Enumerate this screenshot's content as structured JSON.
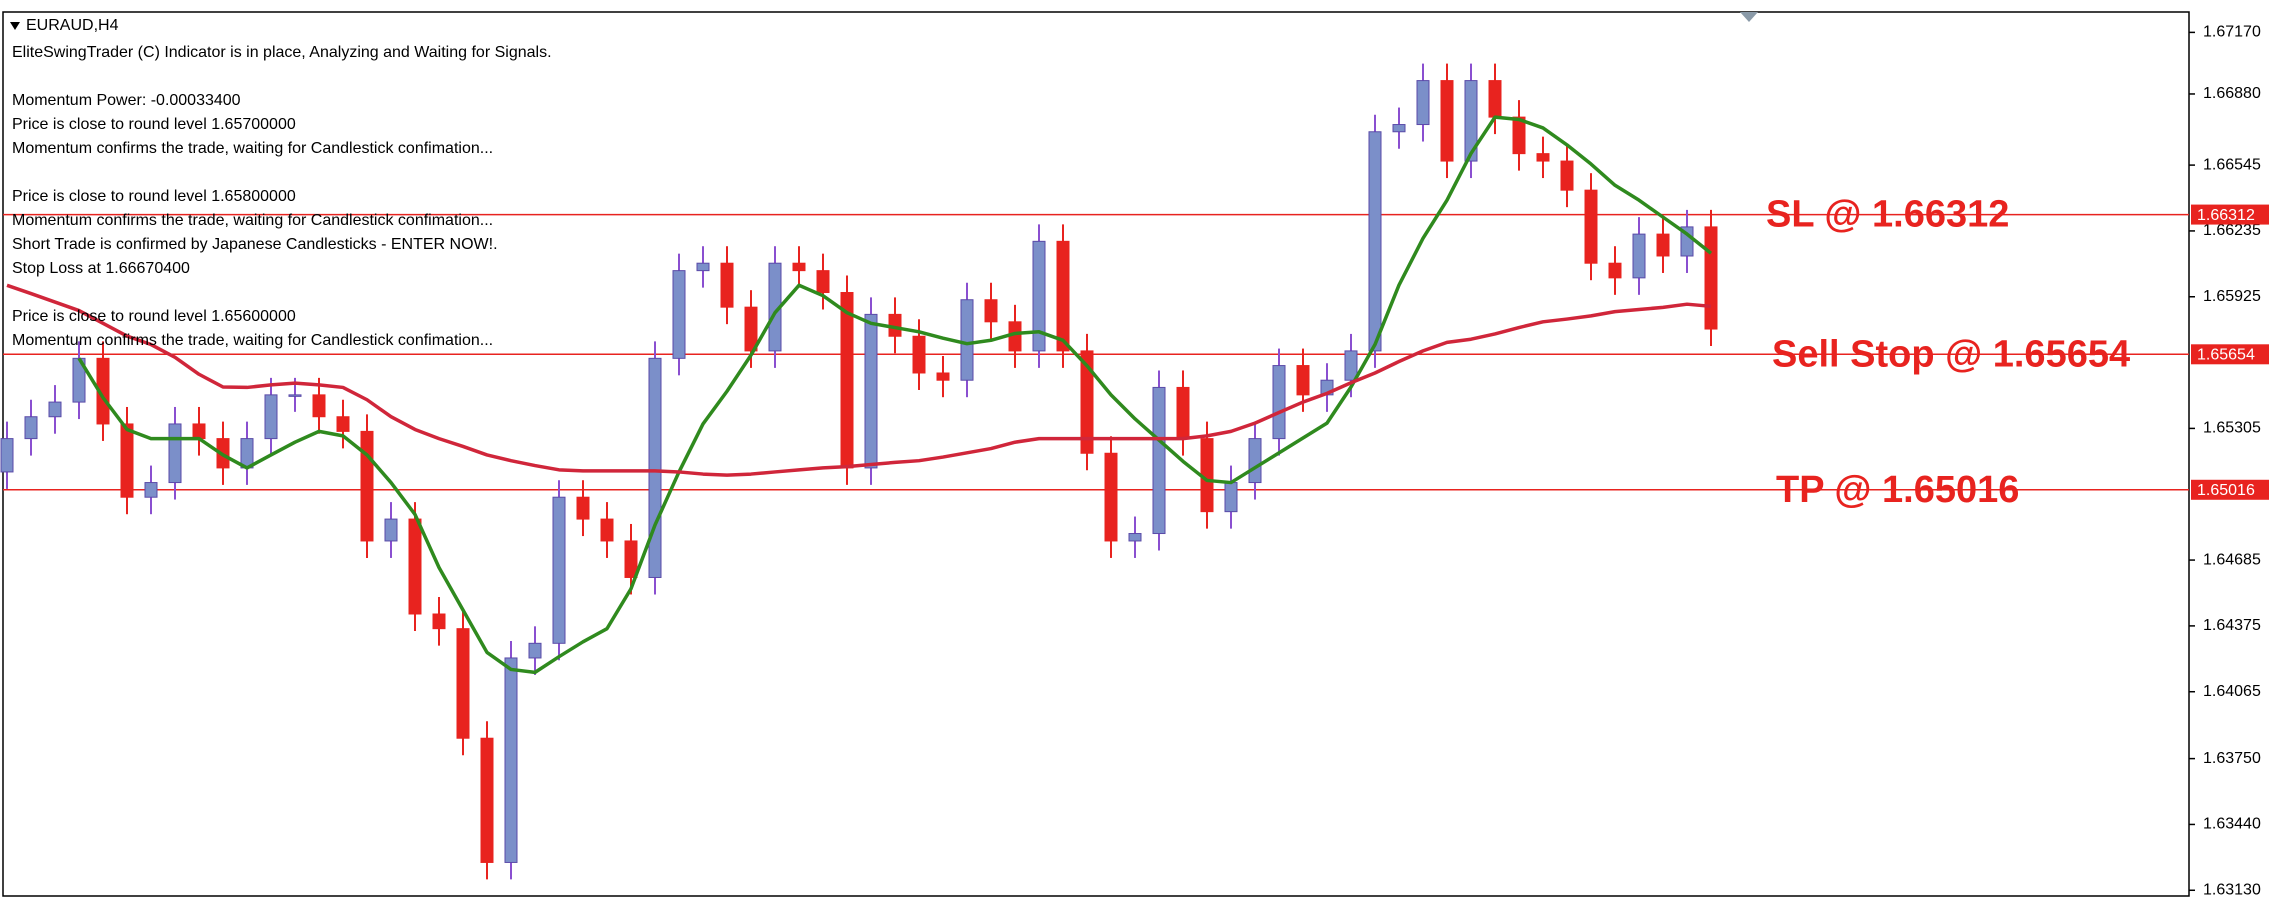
{
  "chart_data": {
    "type": "candlestick",
    "title": "EURAUD,H4",
    "info_lines": [
      "EliteSwingTrader (C) Indicator is in place, Analyzing and Waiting for Signals.",
      "Momentum Power: -0.00033400",
      "Price is close to round level 1.65700000",
      "Momentum confirms the trade, waiting for Candlestick confimation...",
      "Price is close to round level 1.65800000",
      "Momentum confirms the trade, waiting for Candlestick confimation...",
      "Short Trade is confirmed by Japanese Candlesticks - ENTER NOW!.",
      "Stop Loss at 1.66670400",
      "Price is close to round level 1.65600000",
      "Momentum confirms the trade, waiting for Candlestick confimation..."
    ],
    "ylim": [
      1.63103,
      1.67266
    ],
    "yticks": [
      {
        "value": 1.6717,
        "label": "1.67170"
      },
      {
        "value": 1.6688,
        "label": "1.66880"
      },
      {
        "value": 1.66545,
        "label": "1.66545"
      },
      {
        "value": 1.66235,
        "label": "1.66235"
      },
      {
        "value": 1.65925,
        "label": "1.65925"
      },
      {
        "value": 1.65305,
        "label": "1.65305"
      },
      {
        "value": 1.64685,
        "label": "1.64685"
      },
      {
        "value": 1.64375,
        "label": "1.64375"
      },
      {
        "value": 1.64065,
        "label": "1.64065"
      },
      {
        "value": 1.6375,
        "label": "1.63750"
      },
      {
        "value": 1.6344,
        "label": "1.63440"
      },
      {
        "value": 1.6313,
        "label": "1.63130"
      }
    ],
    "up_color": "#7b8fc9",
    "down_color": "#e8231f",
    "open": [
      1.651,
      1.65257,
      1.6536,
      1.65429,
      1.65635,
      1.65326,
      1.64981,
      1.6505,
      1.65326,
      1.65257,
      1.65119,
      1.65257,
      1.65463,
      1.65463,
      1.6536,
      1.65291,
      1.64775,
      1.64878,
      1.64431,
      1.64362,
      1.63846,
      1.63261,
      1.64224,
      1.64293,
      1.64981,
      1.64878,
      1.64775,
      1.64603,
      1.65635,
      1.66048,
      1.66083,
      1.65876,
      1.6567,
      1.66083,
      1.66048,
      1.65945,
      1.65119,
      1.65842,
      1.65739,
      1.65566,
      1.65532,
      1.65911,
      1.65807,
      1.6567,
      1.66186,
      1.6567,
      1.65188,
      1.64775,
      1.6481,
      1.65498,
      1.65257,
      1.64913,
      1.6505,
      1.65257,
      1.65601,
      1.65463,
      1.65532,
      1.6567,
      1.66702,
      1.66736,
      1.66943,
      1.66564,
      1.66943,
      1.66771,
      1.66599,
      1.66564,
      1.66427,
      1.66083,
      1.66014,
      1.6622,
      1.66117,
      1.66254
    ],
    "high": [
      1.65337,
      1.6544,
      1.65509,
      1.65715,
      1.65715,
      1.65406,
      1.6513,
      1.65406,
      1.65406,
      1.65337,
      1.65337,
      1.65543,
      1.65543,
      1.65543,
      1.6544,
      1.65371,
      1.64958,
      1.64958,
      1.64511,
      1.64442,
      1.63926,
      1.64304,
      1.64373,
      1.65061,
      1.65061,
      1.64958,
      1.64855,
      1.65715,
      1.66128,
      1.66163,
      1.66163,
      1.65956,
      1.66163,
      1.66163,
      1.66128,
      1.66025,
      1.65922,
      1.65922,
      1.65819,
      1.65646,
      1.65991,
      1.65991,
      1.65887,
      1.66266,
      1.66266,
      1.6575,
      1.65268,
      1.6489,
      1.65578,
      1.65578,
      1.65337,
      1.6513,
      1.65337,
      1.65681,
      1.65681,
      1.65612,
      1.6575,
      1.66782,
      1.66816,
      1.67023,
      1.67023,
      1.67023,
      1.67023,
      1.66851,
      1.66679,
      1.66644,
      1.66507,
      1.66163,
      1.663,
      1.663,
      1.66334,
      1.66334
    ],
    "low": [
      1.6502,
      1.65177,
      1.6528,
      1.65349,
      1.65246,
      1.64901,
      1.64901,
      1.6497,
      1.65177,
      1.65039,
      1.65039,
      1.65177,
      1.65383,
      1.6528,
      1.65211,
      1.64695,
      1.64695,
      1.64351,
      1.64282,
      1.63766,
      1.63181,
      1.63181,
      1.64144,
      1.64213,
      1.64798,
      1.64695,
      1.64523,
      1.64523,
      1.65555,
      1.65968,
      1.65796,
      1.6559,
      1.6559,
      1.65968,
      1.65865,
      1.65039,
      1.65039,
      1.65659,
      1.65486,
      1.65452,
      1.65452,
      1.65727,
      1.6559,
      1.6559,
      1.6559,
      1.65108,
      1.64695,
      1.64695,
      1.6473,
      1.65177,
      1.64833,
      1.64833,
      1.6497,
      1.65177,
      1.65383,
      1.65383,
      1.65452,
      1.6559,
      1.66622,
      1.66656,
      1.66484,
      1.66484,
      1.66691,
      1.66519,
      1.66484,
      1.66347,
      1.66003,
      1.65934,
      1.65934,
      1.66037,
      1.66037,
      1.65693
    ],
    "close": [
      1.65257,
      1.6536,
      1.65429,
      1.65635,
      1.65326,
      1.64981,
      1.6505,
      1.65326,
      1.65257,
      1.65119,
      1.65257,
      1.65463,
      1.65463,
      1.6536,
      1.65291,
      1.64775,
      1.64878,
      1.64431,
      1.64362,
      1.63846,
      1.63261,
      1.64224,
      1.64293,
      1.64981,
      1.64878,
      1.64775,
      1.64603,
      1.65635,
      1.66048,
      1.66083,
      1.65876,
      1.6567,
      1.66083,
      1.66048,
      1.65945,
      1.65119,
      1.65842,
      1.65739,
      1.65566,
      1.65532,
      1.65911,
      1.65807,
      1.6567,
      1.66186,
      1.6567,
      1.65188,
      1.64775,
      1.6481,
      1.65498,
      1.65257,
      1.64913,
      1.6505,
      1.65257,
      1.65601,
      1.65463,
      1.65532,
      1.6567,
      1.66702,
      1.66736,
      1.66943,
      1.66564,
      1.66943,
      1.66771,
      1.66599,
      1.66564,
      1.66427,
      1.66083,
      1.66014,
      1.6622,
      1.66117,
      1.66254,
      1.65773
    ],
    "lines": [
      {
        "color": "#2f8a1e",
        "values": [
          null,
          null,
          null,
          1.65635,
          1.6545,
          1.653,
          1.65257,
          1.65257,
          1.65257,
          1.6518,
          1.65119,
          1.6518,
          1.6524,
          1.65291,
          1.6527,
          1.6518,
          1.6505,
          1.649,
          1.6465,
          1.6445,
          1.6425,
          1.6417,
          1.64156,
          1.6423,
          1.643,
          1.64362,
          1.6455,
          1.6485,
          1.651,
          1.65326,
          1.6548,
          1.6565,
          1.6585,
          1.65979,
          1.6593,
          1.6585,
          1.658,
          1.6578,
          1.6576,
          1.6573,
          1.65704,
          1.6572,
          1.65752,
          1.6576,
          1.6572,
          1.656,
          1.65463,
          1.6535,
          1.6525,
          1.6515,
          1.6506,
          1.6505,
          1.6512,
          1.6519,
          1.6526,
          1.6533,
          1.655,
          1.657,
          1.6598,
          1.662,
          1.6638,
          1.666,
          1.66771,
          1.6676,
          1.6672,
          1.6664,
          1.6655,
          1.6645,
          1.6638,
          1.663,
          1.6622,
          1.6613
        ]
      },
      {
        "color": "#d0263a",
        "values": [
          1.65979,
          1.6594,
          1.659,
          1.6586,
          1.658,
          1.6574,
          1.657,
          1.6564,
          1.6556,
          1.655,
          1.65498,
          1.6551,
          1.65518,
          1.6551,
          1.65498,
          1.6544,
          1.6536,
          1.653,
          1.65257,
          1.6522,
          1.6518,
          1.65153,
          1.6513,
          1.6511,
          1.65105,
          1.65105,
          1.65105,
          1.65105,
          1.651,
          1.6509,
          1.65085,
          1.6509,
          1.651,
          1.6511,
          1.65119,
          1.65125,
          1.65135,
          1.65145,
          1.65153,
          1.6517,
          1.6519,
          1.6521,
          1.6524,
          1.65257,
          1.65257,
          1.65257,
          1.65257,
          1.65257,
          1.65257,
          1.65257,
          1.6527,
          1.65291,
          1.6533,
          1.6538,
          1.65429,
          1.6547,
          1.6552,
          1.65566,
          1.6562,
          1.6567,
          1.6571,
          1.65725,
          1.6575,
          1.6578,
          1.65807,
          1.6582,
          1.65835,
          1.65855,
          1.65865,
          1.65875,
          1.6589,
          1.6588
        ]
      }
    ],
    "levels": [
      {
        "name": "SL @ 1.66312",
        "value": 1.66312,
        "axis_label": "1.66312"
      },
      {
        "name": "Sell Stop @ 1.65654",
        "value": 1.65654,
        "axis_label": "1.65654"
      },
      {
        "name": "TP @ 1.65016",
        "value": 1.65016,
        "axis_label": "1.65016"
      }
    ],
    "level_color": "#e8231f"
  }
}
